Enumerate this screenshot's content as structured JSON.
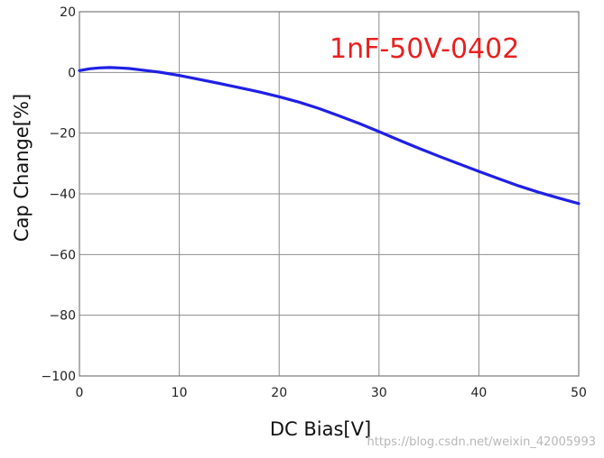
{
  "chart_data": {
    "type": "line",
    "title": "",
    "xlabel": "DC Bias[V]",
    "ylabel": "Cap Change[%]",
    "xlim": [
      0,
      50
    ],
    "ylim": [
      -100,
      20
    ],
    "xticks": [
      0,
      10,
      20,
      30,
      40,
      50
    ],
    "yticks": [
      20,
      0,
      -20,
      -40,
      -60,
      -80,
      -100
    ],
    "xtick_labels": [
      "0",
      "10",
      "20",
      "30",
      "40",
      "50"
    ],
    "ytick_labels": [
      "20",
      "0",
      "−20",
      "−40",
      "−60",
      "−80",
      "−100"
    ],
    "grid": true,
    "annotation": "1nF-50V-0402",
    "series": [
      {
        "x": [
          0,
          1,
          2,
          3,
          4,
          5,
          6,
          7,
          8,
          10,
          12,
          14,
          16,
          18,
          20,
          22,
          24,
          26,
          28,
          30,
          32,
          34,
          36,
          38,
          40,
          42,
          44,
          46,
          48,
          50
        ],
        "y": [
          0.6,
          1.2,
          1.5,
          1.6,
          1.5,
          1.3,
          0.9,
          0.5,
          0.1,
          -1.0,
          -2.3,
          -3.6,
          -5.0,
          -6.4,
          -8.0,
          -9.8,
          -11.9,
          -14.3,
          -16.8,
          -19.5,
          -22.3,
          -25.0,
          -27.6,
          -30.1,
          -32.6,
          -35.0,
          -37.4,
          -39.5,
          -41.4,
          -43.2
        ]
      }
    ]
  },
  "colors": {
    "line": "#1f1fe6",
    "annotation": "#e82020",
    "grid": "#8c8c8c",
    "frame": "#7a7a7a"
  },
  "watermark": "https://blog.csdn.net/weixin_42005993"
}
